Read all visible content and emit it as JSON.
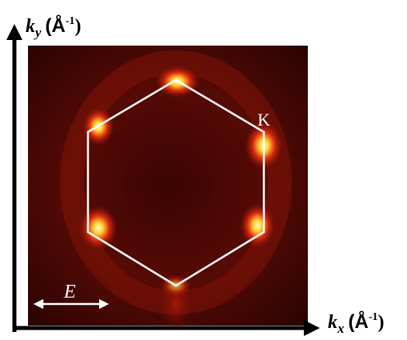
{
  "axes": {
    "y_label": {
      "symbol": "k",
      "subscript": "y",
      "unit": "(Å",
      "exponent": "-1",
      "close": ")"
    },
    "x_label": {
      "symbol": "k",
      "subscript": "x",
      "unit": "(Å",
      "exponent": "-1",
      "close": ")"
    }
  },
  "annotations": {
    "energy": "E",
    "point": "K"
  }
}
